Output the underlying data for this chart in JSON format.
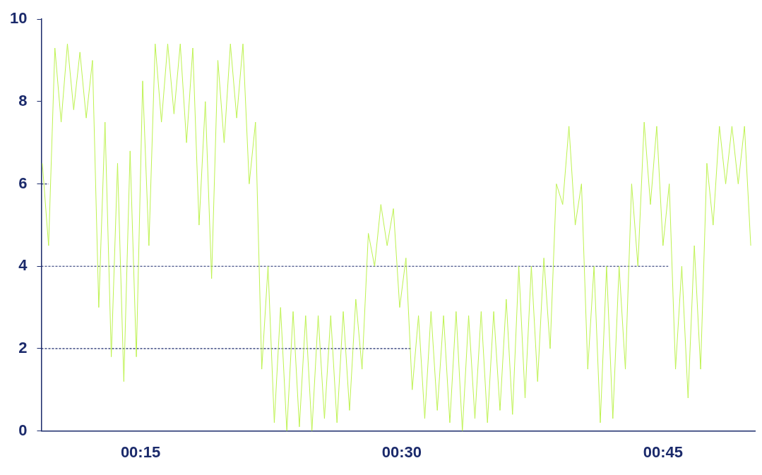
{
  "chart_data": {
    "type": "line",
    "xlim": [
      0.155,
      0.838
    ],
    "ylim": [
      0,
      10
    ],
    "yticks": [
      0,
      2,
      4,
      6,
      8,
      10
    ],
    "xticks": [
      {
        "value": 0.25,
        "label": "00:15"
      },
      {
        "value": 0.5,
        "label": "00:30"
      },
      {
        "value": 0.75,
        "label": "00:45"
      }
    ],
    "grid": false,
    "legend": false,
    "marker": "none",
    "series": [
      {
        "color": "#bdf24f",
        "line_style": "solid",
        "x": [
          0.156,
          0.162,
          0.168,
          0.174,
          0.18,
          0.186,
          0.192,
          0.198,
          0.204,
          0.21,
          0.216,
          0.222,
          0.228,
          0.234,
          0.24,
          0.246,
          0.252,
          0.258,
          0.264,
          0.27,
          0.276,
          0.282,
          0.288,
          0.294,
          0.3,
          0.306,
          0.312,
          0.318,
          0.324,
          0.33,
          0.336,
          0.342,
          0.348,
          0.354,
          0.36,
          0.366,
          0.372,
          0.378,
          0.384,
          0.39,
          0.396,
          0.402,
          0.408,
          0.414,
          0.42,
          0.426,
          0.432,
          0.438,
          0.444,
          0.45,
          0.456,
          0.462,
          0.468,
          0.474,
          0.48,
          0.486,
          0.492,
          0.498,
          0.504,
          0.51,
          0.516,
          0.522,
          0.528,
          0.534,
          0.54,
          0.546,
          0.552,
          0.558,
          0.564,
          0.57,
          0.576,
          0.582,
          0.588,
          0.594,
          0.6,
          0.606,
          0.612,
          0.618,
          0.624,
          0.63,
          0.636,
          0.642,
          0.648,
          0.654,
          0.66,
          0.666,
          0.672,
          0.678,
          0.684,
          0.69,
          0.696,
          0.702,
          0.708,
          0.714,
          0.72,
          0.726,
          0.732,
          0.738,
          0.744,
          0.75,
          0.756,
          0.762,
          0.768,
          0.774,
          0.78,
          0.786,
          0.792,
          0.798,
          0.804,
          0.81,
          0.816,
          0.822,
          0.828,
          0.834
        ],
        "values": [
          6.5,
          4.5,
          9.3,
          7.5,
          9.4,
          7.8,
          9.2,
          7.6,
          9.0,
          3.0,
          7.5,
          1.8,
          6.5,
          1.2,
          6.8,
          1.8,
          8.5,
          4.5,
          9.4,
          7.5,
          9.4,
          7.7,
          9.4,
          7.0,
          9.3,
          5.0,
          8.0,
          3.7,
          9.0,
          7.0,
          9.4,
          7.6,
          9.4,
          6.0,
          7.5,
          1.5,
          4.0,
          0.2,
          3.0,
          0.0,
          2.9,
          0.1,
          2.8,
          0.0,
          2.8,
          0.3,
          2.8,
          0.2,
          2.9,
          0.5,
          3.2,
          1.5,
          4.8,
          4.0,
          5.5,
          4.5,
          5.4,
          3.0,
          4.2,
          1.0,
          2.8,
          0.3,
          2.9,
          0.5,
          2.8,
          0.2,
          2.9,
          0.0,
          2.8,
          0.3,
          2.9,
          0.2,
          2.9,
          0.5,
          3.2,
          0.4,
          4.0,
          0.8,
          4.0,
          1.2,
          4.2,
          2.0,
          6.0,
          5.5,
          7.4,
          5.0,
          6.0,
          1.5,
          4.0,
          0.2,
          4.0,
          0.3,
          4.0,
          1.5,
          6.0,
          4.0,
          7.5,
          5.5,
          7.4,
          4.5,
          6.0,
          1.5,
          4.0,
          0.8,
          4.5,
          1.5,
          6.5,
          5.0,
          7.4,
          6.0,
          7.4,
          6.0,
          7.4,
          4.5
        ]
      },
      {
        "color": "#1b2a6b",
        "line_style": "dashed",
        "x": [
          0.155,
          0.162
        ],
        "values": [
          6,
          6
        ]
      },
      {
        "color": "#1b2a6b",
        "line_style": "dashed",
        "x": [
          0.155,
          0.755
        ],
        "values": [
          4,
          4
        ]
      },
      {
        "color": "#1b2a6b",
        "line_style": "dashed",
        "x": [
          0.155,
          0.509
        ],
        "values": [
          2,
          2
        ]
      }
    ]
  }
}
